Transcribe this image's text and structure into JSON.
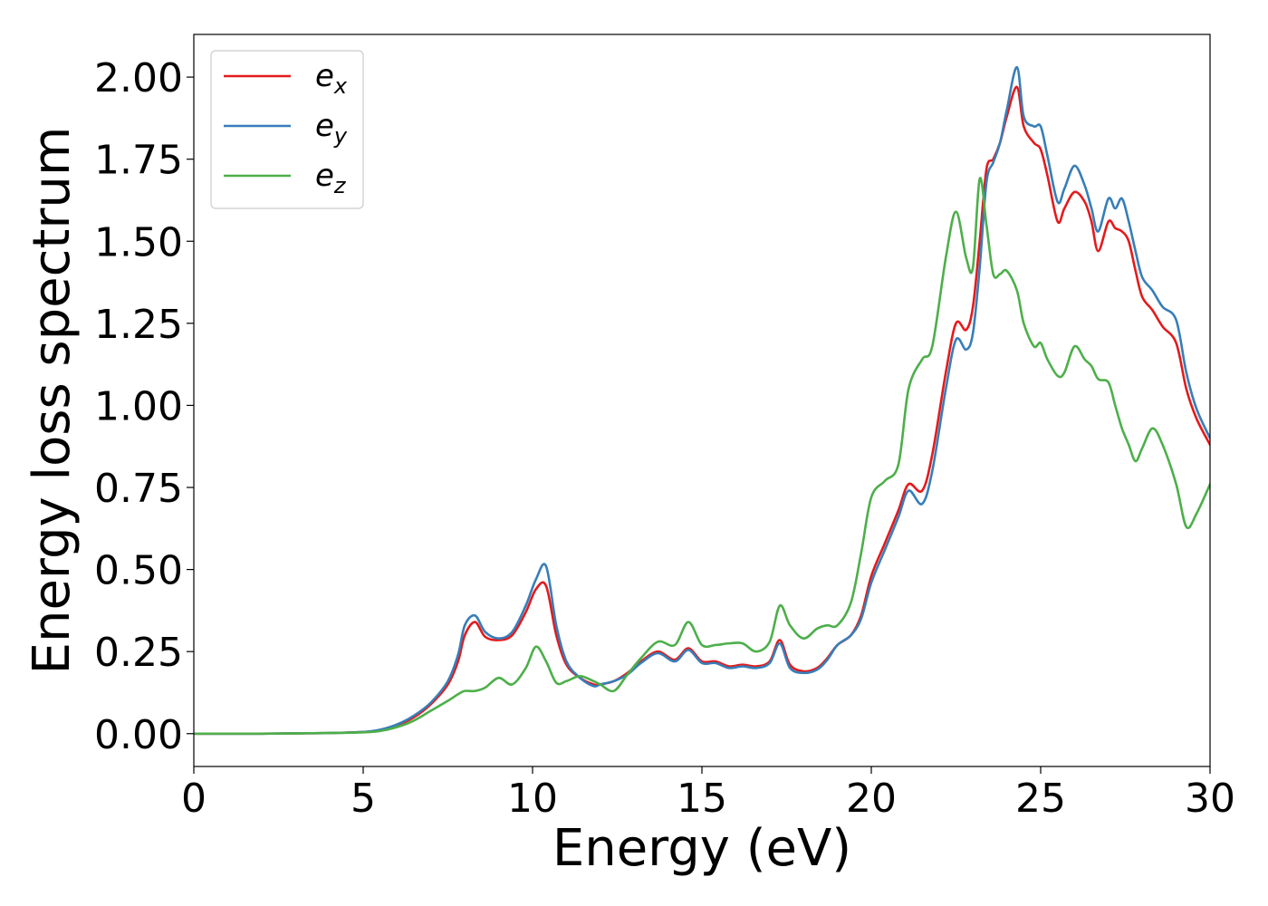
{
  "chart_data": {
    "type": "line",
    "xlabel": "Energy (eV)",
    "ylabel": "Energy loss spectrum",
    "xlim": [
      0,
      30
    ],
    "ylim": [
      -0.1,
      2.13
    ],
    "xticks": [
      "0",
      "5",
      "10",
      "15",
      "20",
      "25",
      "30"
    ],
    "yticks": [
      "0.00",
      "0.25",
      "0.50",
      "0.75",
      "1.00",
      "1.25",
      "1.50",
      "1.75",
      "2.00"
    ],
    "legend_position": "top-left",
    "grid": false,
    "x": [
      0,
      1,
      2,
      3,
      4,
      5,
      5.5,
      6,
      6.5,
      7,
      7.5,
      7.8,
      8.0,
      8.3,
      8.6,
      9.0,
      9.4,
      9.8,
      10.1,
      10.4,
      10.7,
      11.0,
      11.4,
      11.8,
      12.0,
      12.4,
      12.8,
      13.2,
      13.7,
      14.2,
      14.6,
      15.0,
      15.4,
      15.8,
      16.2,
      16.6,
      17.0,
      17.3,
      17.6,
      18.0,
      18.4,
      18.7,
      19.0,
      19.4,
      19.7,
      20.0,
      20.4,
      20.8,
      21.1,
      21.5,
      21.8,
      22.2,
      22.5,
      22.8,
      23.0,
      23.2,
      23.4,
      23.6,
      23.8,
      24.0,
      24.3,
      24.5,
      24.8,
      25.0,
      25.2,
      25.5,
      25.7,
      26.0,
      26.3,
      26.5,
      26.7,
      27.0,
      27.2,
      27.4,
      27.6,
      27.8,
      28.0,
      28.3,
      28.6,
      29.0,
      29.3,
      29.6,
      30.0
    ],
    "series": [
      {
        "name": "e_x",
        "label_main": "e",
        "label_sub": "x",
        "color": "#e41a1c",
        "values": [
          0,
          0,
          0,
          0.001,
          0.002,
          0.005,
          0.01,
          0.025,
          0.05,
          0.09,
          0.15,
          0.22,
          0.3,
          0.34,
          0.295,
          0.285,
          0.3,
          0.37,
          0.44,
          0.45,
          0.3,
          0.21,
          0.17,
          0.15,
          0.15,
          0.16,
          0.185,
          0.22,
          0.25,
          0.225,
          0.26,
          0.22,
          0.22,
          0.205,
          0.21,
          0.205,
          0.22,
          0.285,
          0.21,
          0.19,
          0.2,
          0.23,
          0.27,
          0.3,
          0.36,
          0.48,
          0.58,
          0.68,
          0.76,
          0.74,
          0.85,
          1.1,
          1.25,
          1.23,
          1.3,
          1.5,
          1.72,
          1.75,
          1.8,
          1.88,
          1.97,
          1.85,
          1.8,
          1.78,
          1.7,
          1.56,
          1.6,
          1.65,
          1.62,
          1.56,
          1.47,
          1.56,
          1.54,
          1.53,
          1.5,
          1.41,
          1.33,
          1.29,
          1.24,
          1.19,
          1.05,
          0.96,
          0.88
        ]
      },
      {
        "name": "e_y",
        "label_main": "e",
        "label_sub": "y",
        "color": "#377eb8",
        "values": [
          0,
          0,
          0,
          0.001,
          0.002,
          0.005,
          0.012,
          0.028,
          0.055,
          0.095,
          0.16,
          0.24,
          0.33,
          0.36,
          0.31,
          0.29,
          0.31,
          0.39,
          0.47,
          0.51,
          0.33,
          0.22,
          0.17,
          0.145,
          0.15,
          0.16,
          0.18,
          0.215,
          0.245,
          0.22,
          0.255,
          0.215,
          0.215,
          0.2,
          0.205,
          0.2,
          0.215,
          0.275,
          0.2,
          0.185,
          0.195,
          0.225,
          0.27,
          0.3,
          0.35,
          0.46,
          0.56,
          0.66,
          0.74,
          0.7,
          0.8,
          1.05,
          1.2,
          1.17,
          1.22,
          1.42,
          1.68,
          1.74,
          1.8,
          1.9,
          2.03,
          1.88,
          1.85,
          1.85,
          1.76,
          1.62,
          1.66,
          1.73,
          1.67,
          1.6,
          1.53,
          1.63,
          1.6,
          1.63,
          1.56,
          1.47,
          1.39,
          1.35,
          1.3,
          1.26,
          1.1,
          0.99,
          0.9
        ]
      },
      {
        "name": "e_z",
        "label_main": "e",
        "label_sub": "z",
        "color": "#4daf4a",
        "values": [
          0,
          0,
          0,
          0.001,
          0.002,
          0.004,
          0.008,
          0.02,
          0.04,
          0.07,
          0.1,
          0.12,
          0.13,
          0.13,
          0.14,
          0.17,
          0.15,
          0.2,
          0.265,
          0.22,
          0.155,
          0.16,
          0.175,
          0.16,
          0.15,
          0.13,
          0.18,
          0.23,
          0.28,
          0.27,
          0.34,
          0.27,
          0.27,
          0.275,
          0.275,
          0.25,
          0.28,
          0.39,
          0.33,
          0.29,
          0.32,
          0.33,
          0.33,
          0.4,
          0.55,
          0.72,
          0.77,
          0.82,
          1.05,
          1.14,
          1.18,
          1.45,
          1.59,
          1.45,
          1.42,
          1.69,
          1.55,
          1.4,
          1.4,
          1.41,
          1.35,
          1.25,
          1.18,
          1.19,
          1.14,
          1.09,
          1.1,
          1.18,
          1.14,
          1.12,
          1.08,
          1.07,
          1.0,
          0.93,
          0.88,
          0.83,
          0.87,
          0.93,
          0.88,
          0.76,
          0.63,
          0.67,
          0.76
        ]
      }
    ]
  }
}
